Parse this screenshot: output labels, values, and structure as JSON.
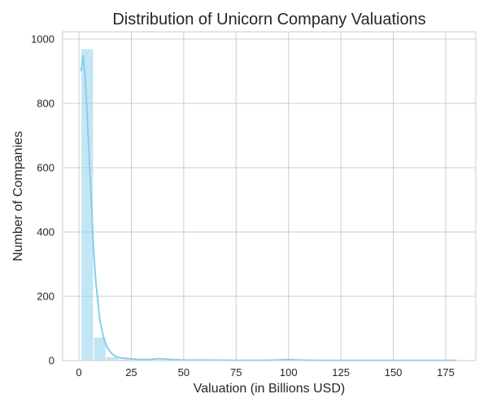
{
  "chart_data": {
    "type": "bar",
    "subtype": "histogram_with_kde",
    "title": "Distribution of Unicorn Company Valuations",
    "xlabel": "Valuation (in Billions USD)",
    "ylabel": "Number of Companies",
    "xlim": [
      -8,
      189
    ],
    "ylim": [
      0,
      1022
    ],
    "xticks": [
      0,
      25,
      50,
      75,
      100,
      125,
      150,
      175
    ],
    "yticks": [
      0,
      200,
      400,
      600,
      800,
      1000
    ],
    "grid": true,
    "legend": null,
    "bar_color": "#87ceeb",
    "bins": {
      "start": 1,
      "width": 5.967,
      "counts": [
        970,
        73,
        12,
        4,
        2,
        1,
        2,
        1,
        0,
        0,
        0,
        0,
        0,
        0,
        0,
        0,
        2,
        0,
        0,
        0,
        0,
        0,
        0,
        0,
        0,
        0,
        0,
        0,
        0,
        1
      ]
    },
    "kde": {
      "x": [
        1,
        2,
        3,
        4,
        5,
        6,
        7,
        8,
        10,
        12,
        14,
        16,
        18,
        20,
        25,
        30,
        35,
        38,
        40,
        45,
        50,
        60,
        75,
        90,
        100,
        105,
        110,
        125,
        150,
        175,
        180
      ],
      "y": [
        900,
        950,
        880,
        760,
        620,
        480,
        350,
        250,
        125,
        65,
        35,
        20,
        12,
        8,
        5,
        3,
        4,
        6,
        5,
        3,
        2,
        1.5,
        1,
        1,
        3,
        2,
        1,
        0.8,
        0.6,
        0.5,
        0.5
      ]
    }
  }
}
